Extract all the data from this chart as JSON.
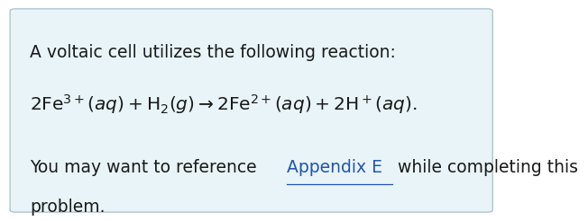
{
  "background_color": "#ffffff",
  "box_color": "#e8f4f8",
  "box_border_color": "#b0c4d0",
  "line1": "A voltaic cell utilizes the following reaction:",
  "line3_plain": "You may want to reference ",
  "line3_link": "Appendix E",
  "line3_after": " while completing this",
  "line4_plain": "problem.",
  "text_color": "#1a1a1a",
  "link_color": "#2255aa",
  "font_size": 13.5,
  "equation_font_size": 14.5,
  "fig_width": 6.52,
  "fig_height": 2.46
}
